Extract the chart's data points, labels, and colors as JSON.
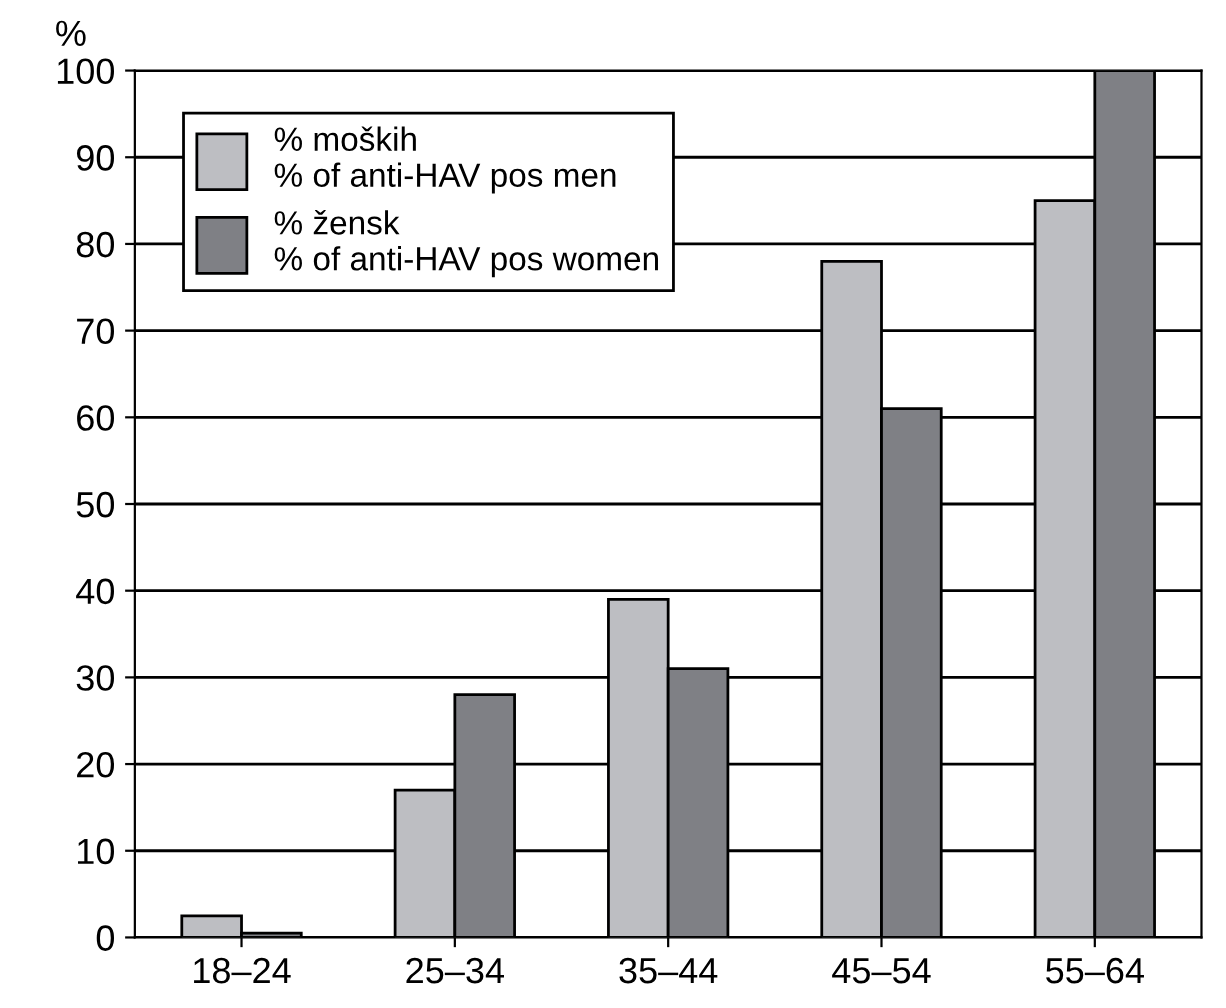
{
  "chart_data": {
    "type": "bar",
    "ylabel": "%",
    "categories": [
      "18–24",
      "25–34",
      "35–44",
      "45–54",
      "55–64"
    ],
    "series": [
      {
        "name": "% moških\n% of anti-HAV pos men",
        "color": "#bdbec2",
        "values": [
          2.5,
          17,
          39,
          78,
          85
        ]
      },
      {
        "name": "% žensk\n% of anti-HAV pos women",
        "color": "#7f8085",
        "values": [
          0.5,
          28,
          31,
          61,
          100
        ]
      }
    ],
    "ylim": [
      0,
      100
    ],
    "yticks": [
      0,
      10,
      20,
      30,
      40,
      50,
      60,
      70,
      80,
      90,
      100
    ],
    "grid": "y",
    "legend": "top left"
  }
}
